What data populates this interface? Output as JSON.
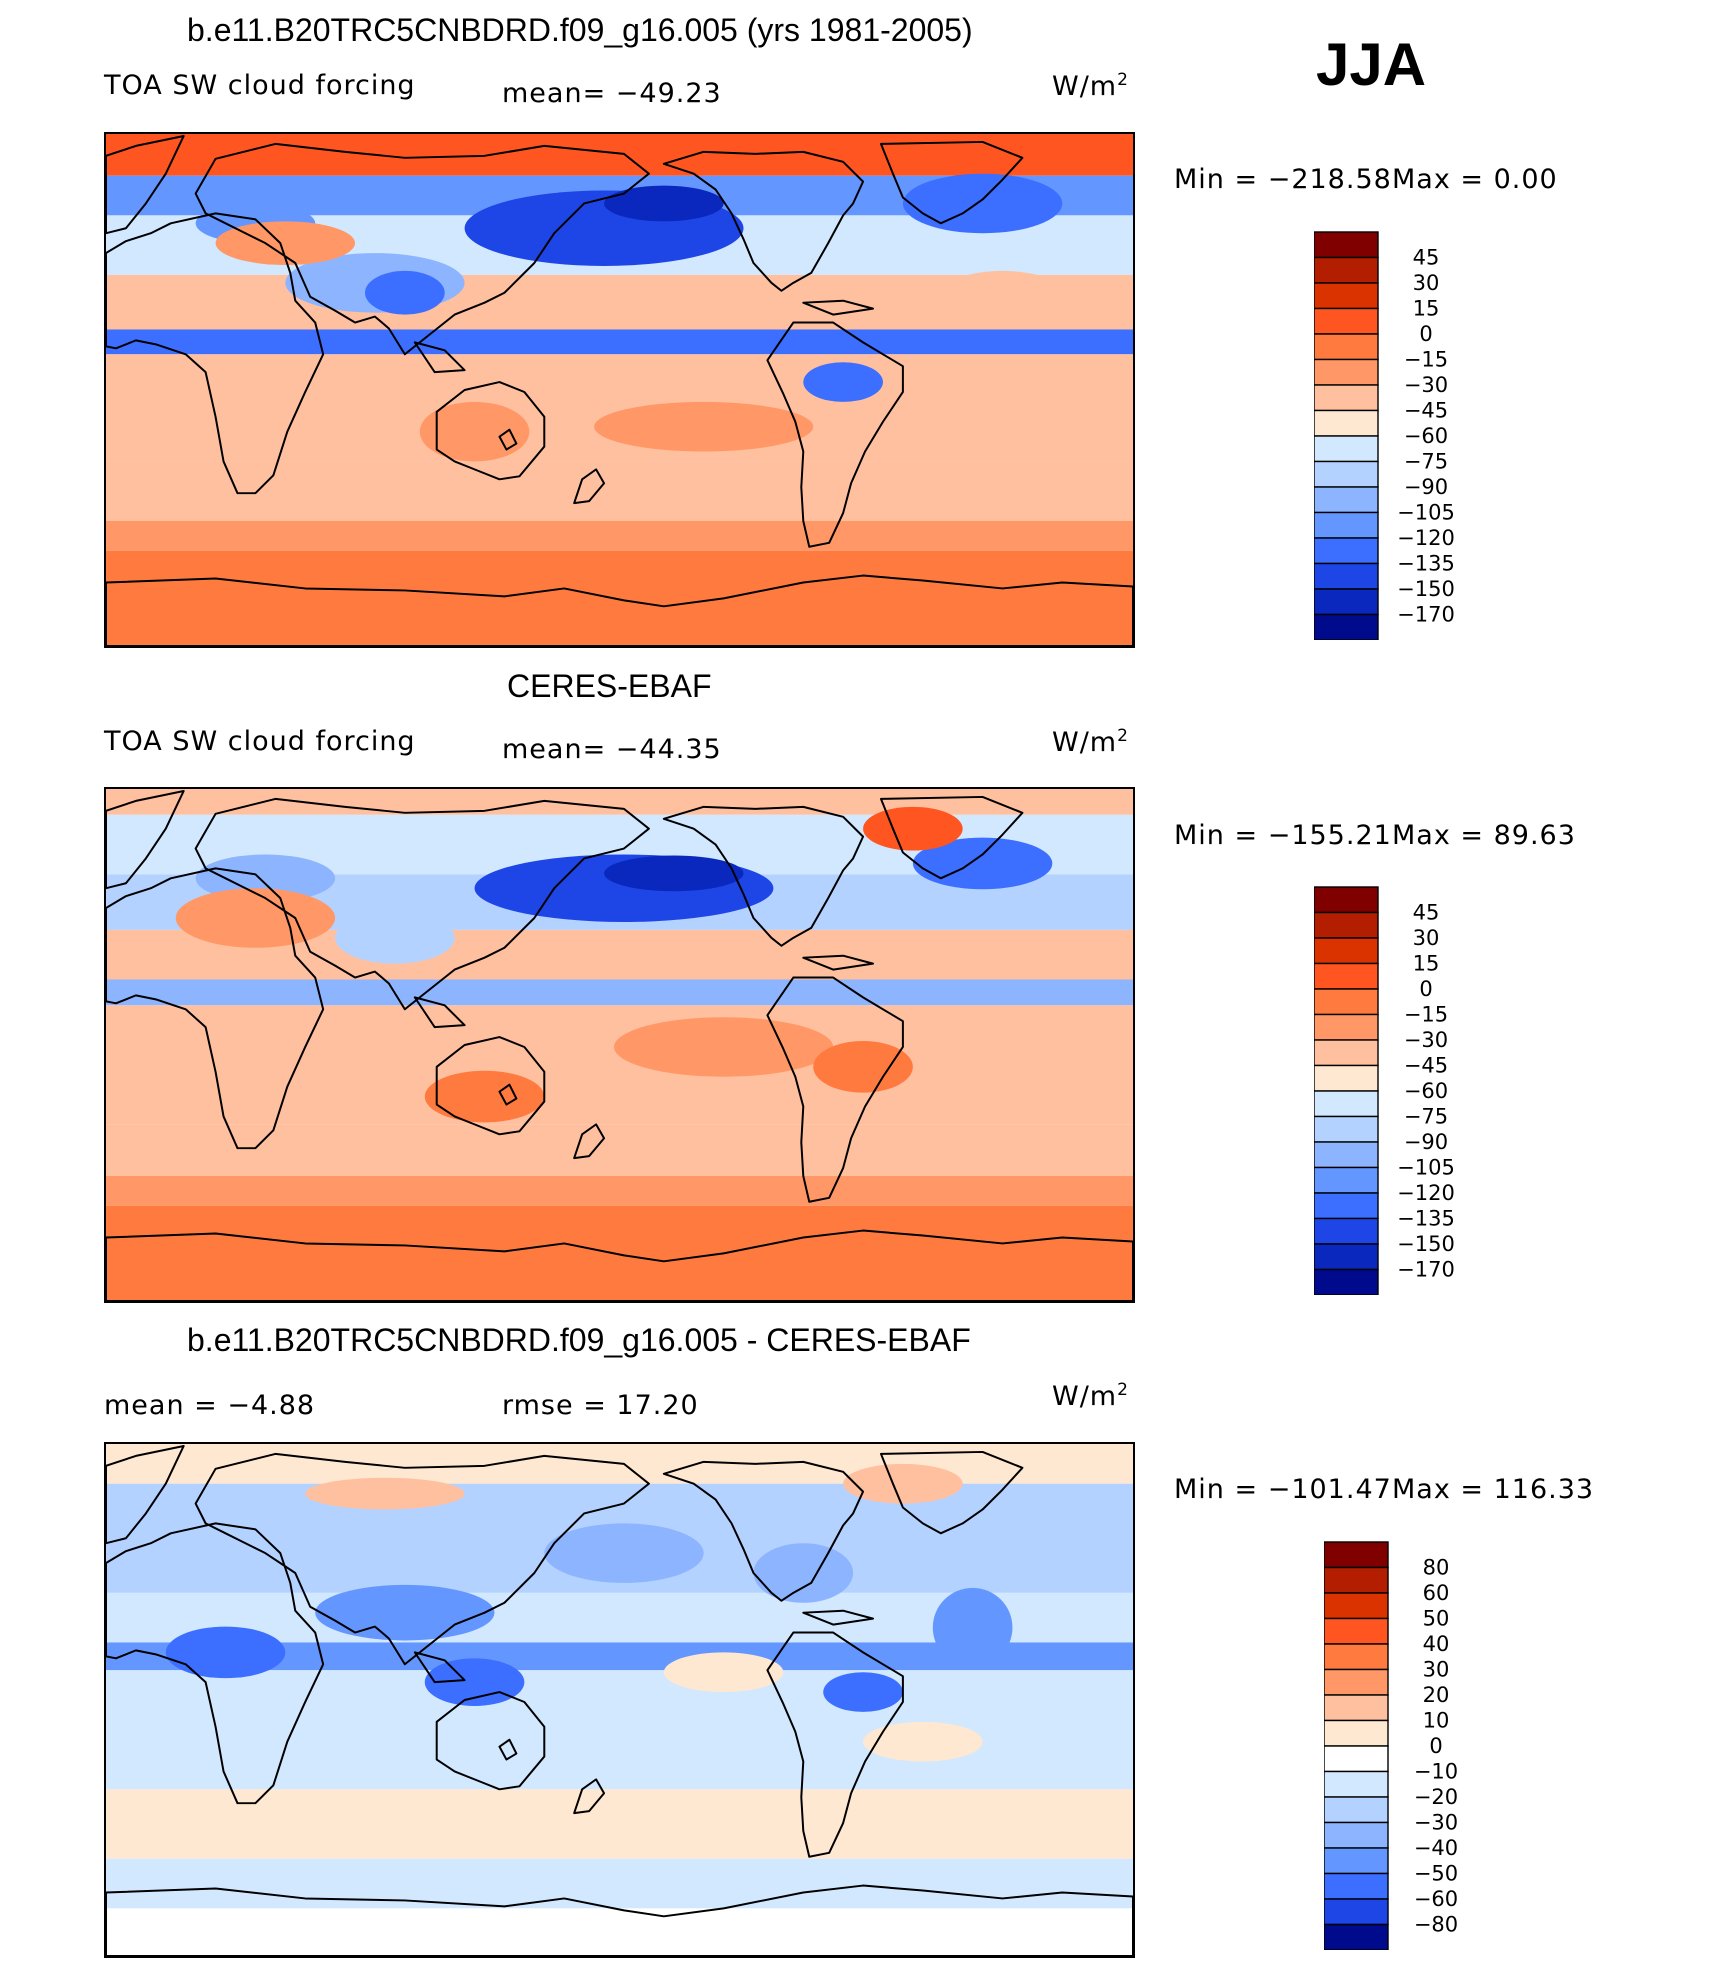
{
  "season": "JJA",
  "panels": [
    {
      "title": "b.e11.B20TRC5CNBDRD.f09_g16.005 (yrs 1981-2005)",
      "left_label": "TOA SW cloud forcing",
      "mid_label": "mean= −49.23",
      "units": "W/m",
      "units_sup": "2",
      "min_label": "Min = −218.58",
      "max_label": "Max =   0.00",
      "pattern": "model",
      "colorbar": {
        "labels": [
          "45",
          "30",
          "15",
          "0",
          "−15",
          "−30",
          "−45",
          "−60",
          "−75",
          "−90",
          "−105",
          "−120",
          "−135",
          "−150",
          "−170"
        ],
        "colors": [
          "#800000",
          "#b31e00",
          "#db3300",
          "#ff5521",
          "#ff7a3f",
          "#ff9866",
          "#ffc0a0",
          "#ffe8d2",
          "#d2e8ff",
          "#b4d2ff",
          "#8cb4ff",
          "#6496ff",
          "#3c6eff",
          "#1e46e6",
          "#0a28be",
          "#000a8c"
        ]
      },
      "map_colors": {
        "strong_warm": "#ff5521",
        "warm": "#ff7a3f",
        "mid_warm": "#ff9866",
        "light_warm": "#ffc0a0",
        "pale_warm": "#ffe8d2",
        "pale_cool": "#d2e8ff",
        "light_cool": "#b4d2ff",
        "mid_cool": "#8cb4ff",
        "cool": "#6496ff",
        "strong_cool": "#3c6eff",
        "deep_cool": "#1e46e6",
        "darkest_cool": "#0a28be"
      }
    },
    {
      "title": "CERES-EBAF",
      "left_label": "TOA SW cloud forcing",
      "mid_label": "mean= −44.35",
      "units": "W/m",
      "units_sup": "2",
      "min_label": "Min = −155.21",
      "max_label": "Max =  89.63",
      "pattern": "obs",
      "colorbar": {
        "labels": [
          "45",
          "30",
          "15",
          "0",
          "−15",
          "−30",
          "−45",
          "−60",
          "−75",
          "−90",
          "−105",
          "−120",
          "−135",
          "−150",
          "−170"
        ],
        "colors": [
          "#800000",
          "#b31e00",
          "#db3300",
          "#ff5521",
          "#ff7a3f",
          "#ff9866",
          "#ffc0a0",
          "#ffe8d2",
          "#d2e8ff",
          "#b4d2ff",
          "#8cb4ff",
          "#6496ff",
          "#3c6eff",
          "#1e46e6",
          "#0a28be",
          "#000a8c"
        ]
      },
      "map_colors": {
        "strong_warm": "#ff5521",
        "warm": "#ff7a3f",
        "mid_warm": "#ff9866",
        "light_warm": "#ffc0a0",
        "pale_warm": "#ffe8d2",
        "pale_cool": "#d2e8ff",
        "light_cool": "#b4d2ff",
        "mid_cool": "#8cb4ff",
        "cool": "#6496ff",
        "strong_cool": "#3c6eff",
        "deep_cool": "#1e46e6",
        "darkest_cool": "#0a28be"
      }
    },
    {
      "title": "b.e11.B20TRC5CNBDRD.f09_g16.005 - CERES-EBAF",
      "left_label": "mean =   −4.88",
      "mid_label": "rmse =   17.20",
      "units": "W/m",
      "units_sup": "2",
      "min_label": "Min = −101.47",
      "max_label": "Max = 116.33",
      "pattern": "diff",
      "colorbar": {
        "labels": [
          "80",
          "60",
          "50",
          "40",
          "30",
          "20",
          "10",
          "0",
          "−10",
          "−20",
          "−30",
          "−40",
          "−50",
          "−60",
          "−80"
        ],
        "colors": [
          "#800000",
          "#b31e00",
          "#db3300",
          "#ff5521",
          "#ff7a3f",
          "#ff9866",
          "#ffc0a0",
          "#ffe8d2",
          "#ffffff",
          "#d2e8ff",
          "#b4d2ff",
          "#8cb4ff",
          "#6496ff",
          "#3c6eff",
          "#1e46e6",
          "#000a8c"
        ]
      },
      "map_colors": {
        "strong_warm": "#ff7a3f",
        "warm": "#ff9866",
        "mid_warm": "#ffc0a0",
        "light_warm": "#ffe8d2",
        "pale_warm": "#ffffff",
        "pale_cool": "#d2e8ff",
        "light_cool": "#b4d2ff",
        "mid_cool": "#8cb4ff",
        "cool": "#6496ff",
        "strong_cool": "#3c6eff",
        "deep_cool": "#1e46e6",
        "darkest_cool": "#0a28be"
      }
    }
  ]
}
